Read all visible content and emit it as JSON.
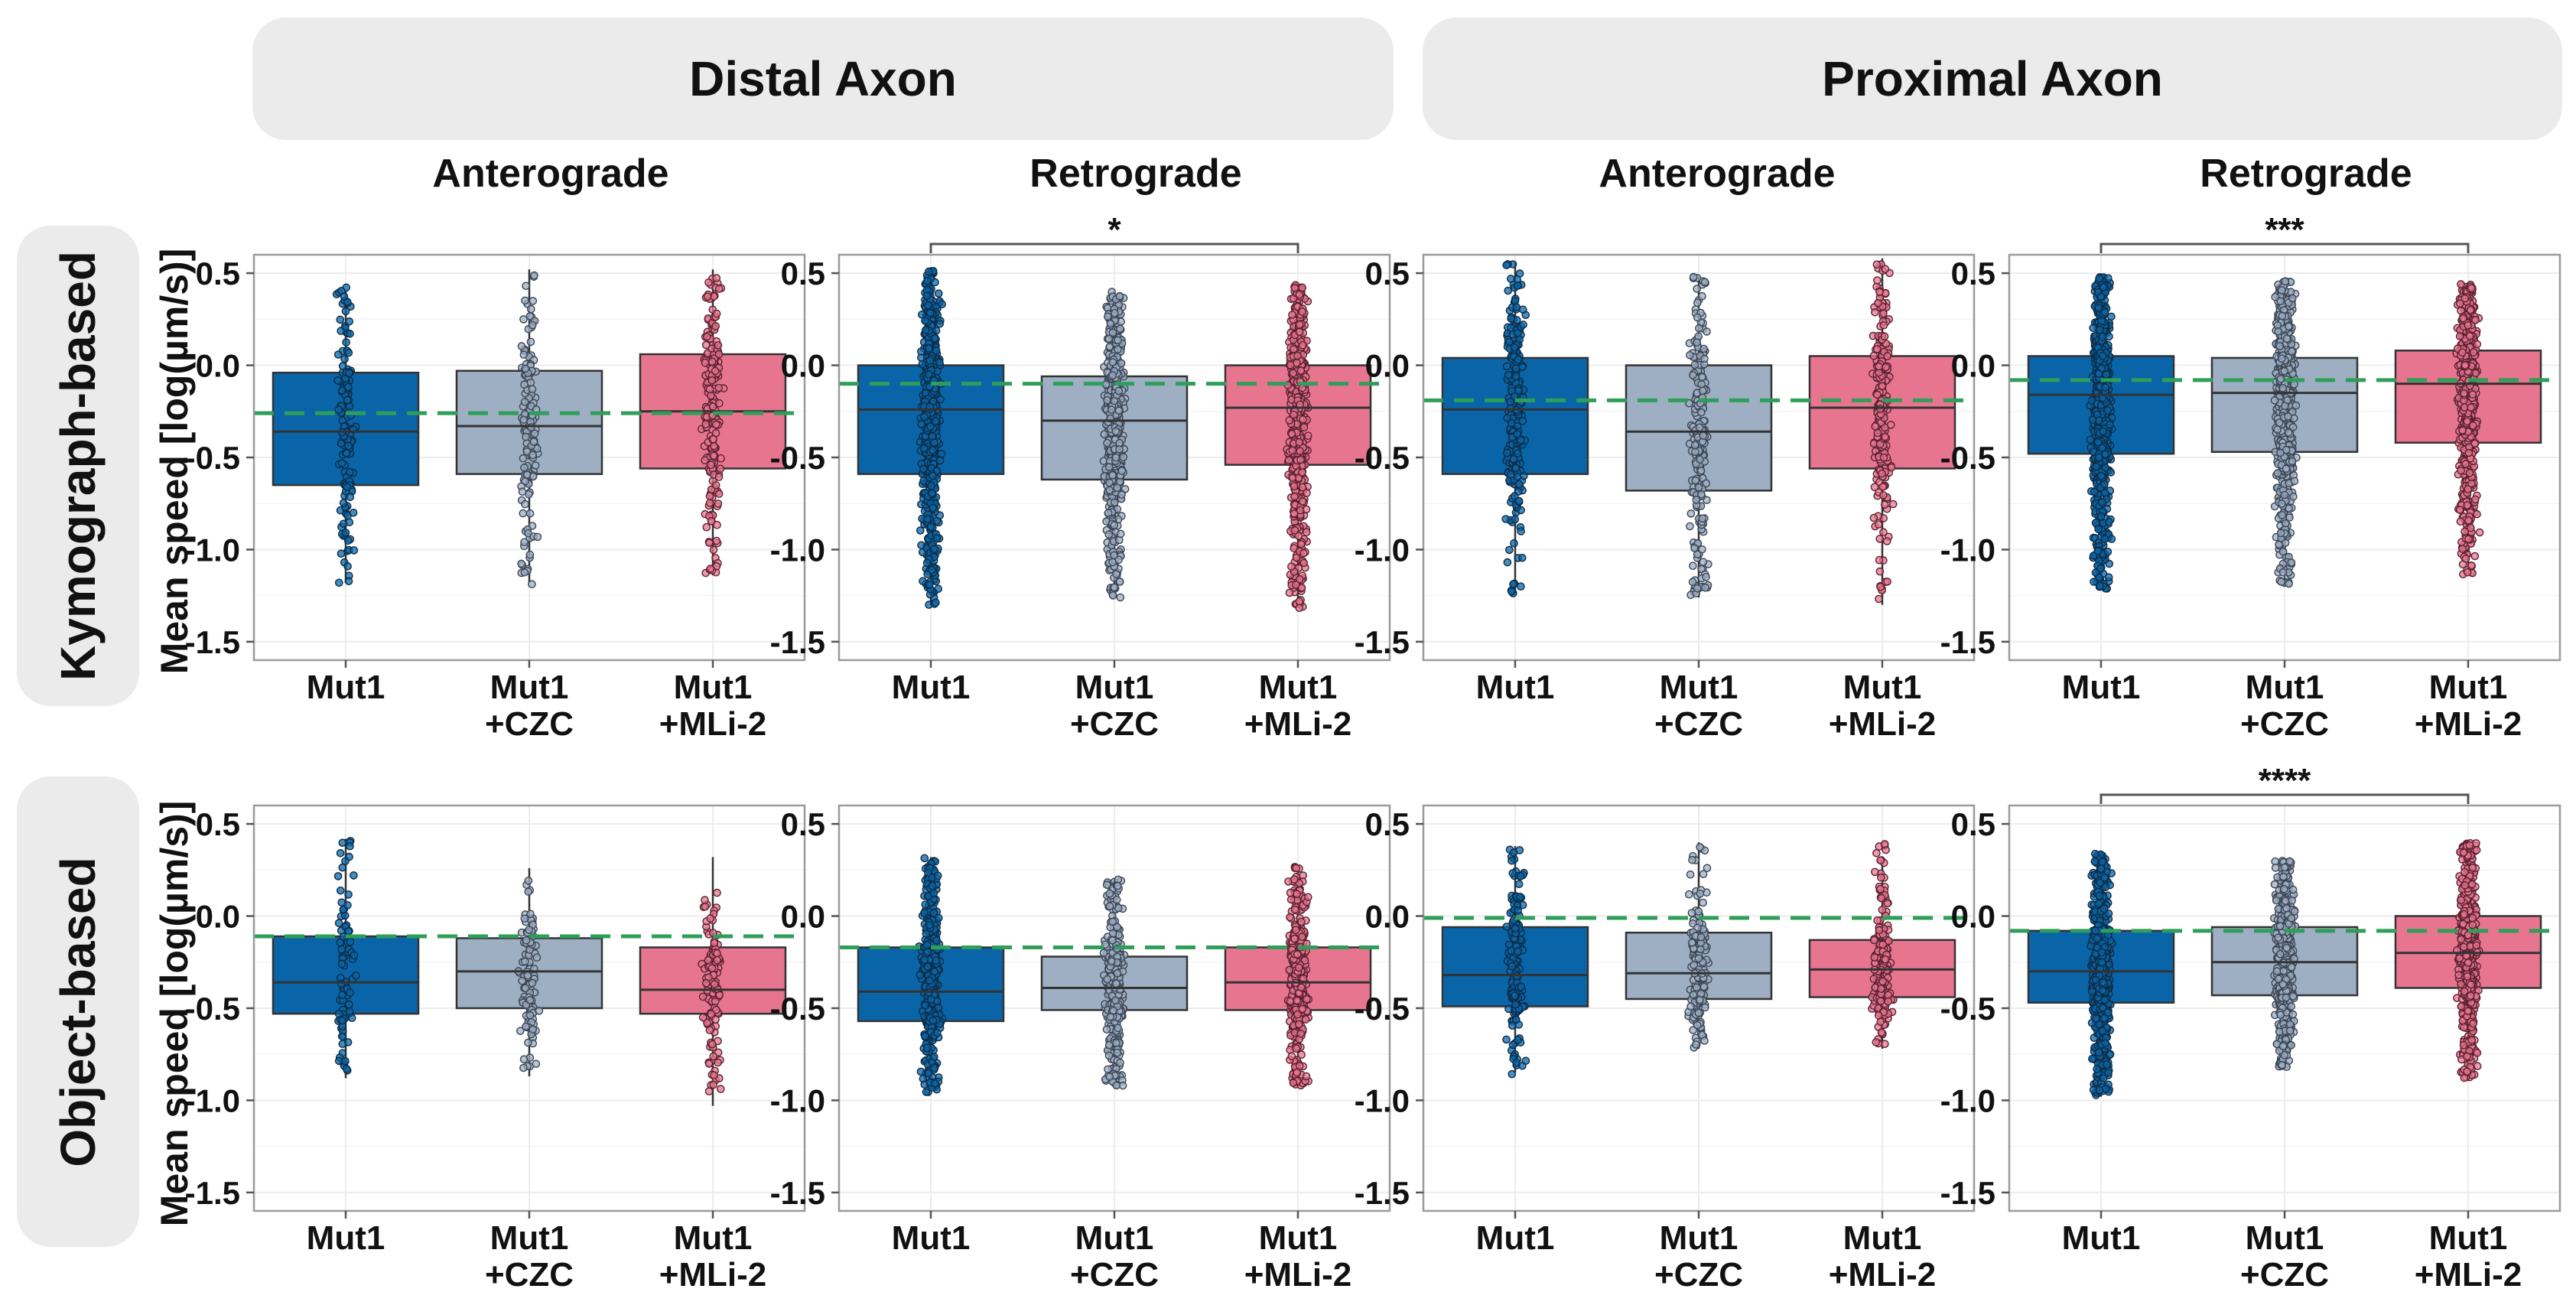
{
  "strips": {
    "distal": "Distal Axon",
    "proximal": "Proximal Axon",
    "kymograph": "Kymograph-based",
    "object": "Object-based"
  },
  "column_titles": [
    "Anterograde",
    "Retrograde",
    "Anterograde",
    "Retrograde"
  ],
  "y_axis_label": "Mean speed [log(µm/s)]",
  "colors": {
    "Mut1": "#0a65a8",
    "CZC": "#9eafc4",
    "MLi2": "#e8758f",
    "reference_line": "#2e9e58",
    "panel_border": "#9a9a9a",
    "grid": "#ececec"
  },
  "chart_data": [
    {
      "type": "box",
      "row": "Kymograph-based",
      "region": "Distal Axon",
      "direction": "Anterograde",
      "categories": [
        "Mut1\n+CZC",
        "Mut1\n+MLi-2"
      ],
      "ylim": [
        -1.6,
        0.6
      ],
      "yticks": [
        0.5,
        0.0,
        -0.5,
        -1.0,
        -1.5
      ],
      "ytick_labels": [
        "0.5",
        "0.0",
        "-0.5",
        "-1.0",
        "-1.5"
      ],
      "category_labels": [
        [
          "Mut1"
        ],
        [
          "Mut1",
          "+CZC"
        ],
        [
          "Mut1",
          "+MLi-2"
        ]
      ],
      "reference_line": -0.26,
      "significance": "",
      "boxes": [
        {
          "q1": -0.65,
          "median": -0.36,
          "q3": -0.04,
          "whisker_low": -1.18,
          "whisker_high": 0.4,
          "n": 140,
          "pt_min": -1.18,
          "pt_max": 0.44
        },
        {
          "q1": -0.59,
          "median": -0.33,
          "q3": -0.03,
          "whisker_low": -1.18,
          "whisker_high": 0.52,
          "n": 160,
          "pt_min": -1.2,
          "pt_max": 0.52
        },
        {
          "q1": -0.56,
          "median": -0.25,
          "q3": 0.06,
          "whisker_low": -1.14,
          "whisker_high": 0.52,
          "n": 200,
          "pt_min": -1.14,
          "pt_max": 0.54
        }
      ]
    },
    {
      "type": "box",
      "row": "Kymograph-based",
      "region": "Distal Axon",
      "direction": "Retrograde",
      "categories": [
        "Mut1\n+CZC",
        "Mut1\n+MLi-2"
      ],
      "ylim": [
        -1.6,
        0.6
      ],
      "yticks": [
        0.5,
        0.0,
        -0.5,
        -1.0,
        -1.5
      ],
      "ytick_labels": [
        "0.5",
        "0.0",
        "-0.5",
        "-1.0",
        "-1.5"
      ],
      "category_labels": [
        [
          "Mut1"
        ],
        [
          "Mut1",
          "+CZC"
        ],
        [
          "Mut1",
          "+MLi-2"
        ]
      ],
      "reference_line": -0.1,
      "significance": "*",
      "sig_pair": [
        0,
        2
      ],
      "boxes": [
        {
          "q1": -0.59,
          "median": -0.24,
          "q3": 0.0,
          "whisker_low": -1.3,
          "whisker_high": 0.52,
          "n": 650,
          "pt_min": -1.3,
          "pt_max": 0.52
        },
        {
          "q1": -0.62,
          "median": -0.3,
          "q3": -0.06,
          "whisker_low": -1.26,
          "whisker_high": 0.4,
          "n": 600,
          "pt_min": -1.26,
          "pt_max": 0.4
        },
        {
          "q1": -0.54,
          "median": -0.23,
          "q3": 0.0,
          "whisker_low": -1.3,
          "whisker_high": 0.42,
          "n": 650,
          "pt_min": -1.32,
          "pt_max": 0.44
        }
      ]
    },
    {
      "type": "box",
      "row": "Kymograph-based",
      "region": "Proximal Axon",
      "direction": "Anterograde",
      "categories": [
        "Mut1\n+CZC",
        "Mut1\n+MLi-2"
      ],
      "ylim": [
        -1.6,
        0.6
      ],
      "yticks": [
        0.5,
        0.0,
        -0.5,
        -1.0,
        -1.5
      ],
      "ytick_labels": [
        "0.5",
        "0.0",
        "-0.5",
        "-1.0",
        "-1.5"
      ],
      "category_labels": [
        [
          "Mut1"
        ],
        [
          "Mut1",
          "+CZC"
        ],
        [
          "Mut1",
          "+MLi-2"
        ]
      ],
      "reference_line": -0.19,
      "significance": "",
      "boxes": [
        {
          "q1": -0.59,
          "median": -0.24,
          "q3": 0.04,
          "whisker_low": -1.24,
          "whisker_high": 0.56,
          "n": 230,
          "pt_min": -1.24,
          "pt_max": 0.56
        },
        {
          "q1": -0.68,
          "median": -0.36,
          "q3": 0.0,
          "whisker_low": -1.26,
          "whisker_high": 0.48,
          "n": 230,
          "pt_min": -1.27,
          "pt_max": 0.48
        },
        {
          "q1": -0.56,
          "median": -0.23,
          "q3": 0.05,
          "whisker_low": -1.3,
          "whisker_high": 0.58,
          "n": 230,
          "pt_min": -1.3,
          "pt_max": 0.58
        }
      ]
    },
    {
      "type": "box",
      "row": "Kymograph-based",
      "region": "Proximal Axon",
      "direction": "Retrograde",
      "categories": [
        "Mut1\n+CZC",
        "Mut1\n+MLi-2"
      ],
      "ylim": [
        -1.6,
        0.6
      ],
      "yticks": [
        0.5,
        0.0,
        -0.5,
        -1.0,
        -1.5
      ],
      "ytick_labels": [
        "0.5",
        "0.0",
        "-0.5",
        "-1.0",
        "-1.5"
      ],
      "category_labels": [
        [
          "Mut1"
        ],
        [
          "Mut1",
          "+CZC"
        ],
        [
          "Mut1",
          "+MLi-2"
        ]
      ],
      "reference_line": -0.08,
      "significance": "***",
      "sig_pair": [
        0,
        2
      ],
      "boxes": [
        {
          "q1": -0.48,
          "median": -0.16,
          "q3": 0.05,
          "whisker_low": -1.22,
          "whisker_high": 0.48,
          "n": 900,
          "pt_min": -1.22,
          "pt_max": 0.48
        },
        {
          "q1": -0.47,
          "median": -0.15,
          "q3": 0.04,
          "whisker_low": -1.2,
          "whisker_high": 0.46,
          "n": 750,
          "pt_min": -1.2,
          "pt_max": 0.46
        },
        {
          "q1": -0.42,
          "median": -0.1,
          "q3": 0.08,
          "whisker_low": -1.12,
          "whisker_high": 0.44,
          "n": 750,
          "pt_min": -1.14,
          "pt_max": 0.44
        }
      ]
    },
    {
      "type": "box",
      "row": "Object-based",
      "region": "Distal Axon",
      "direction": "Anterograde",
      "categories": [
        "Mut1\n+CZC",
        "Mut1\n+MLi-2"
      ],
      "ylim": [
        -1.6,
        0.6
      ],
      "yticks": [
        0.5,
        0.0,
        -0.5,
        -1.0,
        -1.5
      ],
      "ytick_labels": [
        "0.5",
        "0.0",
        "-0.5",
        "-1.0",
        "-1.5"
      ],
      "category_labels": [
        [
          "Mut1"
        ],
        [
          "Mut1",
          "+CZC"
        ],
        [
          "Mut1",
          "+MLi-2"
        ]
      ],
      "reference_line": -0.11,
      "significance": "",
      "boxes": [
        {
          "q1": -0.53,
          "median": -0.36,
          "q3": -0.11,
          "whisker_low": -0.88,
          "whisker_high": 0.42,
          "n": 90,
          "pt_min": -0.88,
          "pt_max": 0.42
        },
        {
          "q1": -0.5,
          "median": -0.3,
          "q3": -0.12,
          "whisker_low": -0.87,
          "whisker_high": 0.26,
          "n": 110,
          "pt_min": -0.87,
          "pt_max": 0.26
        },
        {
          "q1": -0.53,
          "median": -0.4,
          "q3": -0.17,
          "whisker_low": -1.03,
          "whisker_high": 0.32,
          "n": 120,
          "pt_min": -1.03,
          "pt_max": 0.32
        }
      ]
    },
    {
      "type": "box",
      "row": "Object-based",
      "region": "Distal Axon",
      "direction": "Retrograde",
      "categories": [
        "Mut1\n+CZC",
        "Mut1\n+MLi-2"
      ],
      "ylim": [
        -1.6,
        0.6
      ],
      "yticks": [
        0.5,
        0.0,
        -0.5,
        -1.0,
        -1.5
      ],
      "ytick_labels": [
        "0.5",
        "0.0",
        "-0.5",
        "-1.0",
        "-1.5"
      ],
      "category_labels": [
        [
          "Mut1"
        ],
        [
          "Mut1",
          "+CZC"
        ],
        [
          "Mut1",
          "+MLi-2"
        ]
      ],
      "reference_line": -0.17,
      "significance": "",
      "boxes": [
        {
          "q1": -0.57,
          "median": -0.41,
          "q3": -0.17,
          "whisker_low": -0.95,
          "whisker_high": 0.32,
          "n": 450,
          "pt_min": -0.96,
          "pt_max": 0.32
        },
        {
          "q1": -0.51,
          "median": -0.39,
          "q3": -0.22,
          "whisker_low": -0.92,
          "whisker_high": 0.2,
          "n": 350,
          "pt_min": -0.92,
          "pt_max": 0.2
        },
        {
          "q1": -0.51,
          "median": -0.36,
          "q3": -0.17,
          "whisker_low": -0.92,
          "whisker_high": 0.25,
          "n": 450,
          "pt_min": -0.92,
          "pt_max": 0.27
        }
      ]
    },
    {
      "type": "box",
      "row": "Object-based",
      "region": "Proximal Axon",
      "direction": "Anterograde",
      "categories": [
        "Mut1\n+CZC",
        "Mut1\n+MLi-2"
      ],
      "ylim": [
        -1.6,
        0.6
      ],
      "yticks": [
        0.5,
        0.0,
        -0.5,
        -1.0,
        -1.5
      ],
      "ytick_labels": [
        "0.5",
        "0.0",
        "-0.5",
        "-1.0",
        "-1.5"
      ],
      "category_labels": [
        [
          "Mut1"
        ],
        [
          "Mut1",
          "+CZC"
        ],
        [
          "Mut1",
          "+MLi-2"
        ]
      ],
      "reference_line": -0.01,
      "significance": "",
      "boxes": [
        {
          "q1": -0.49,
          "median": -0.32,
          "q3": -0.06,
          "whisker_low": -0.85,
          "whisker_high": 0.38,
          "n": 170,
          "pt_min": -0.86,
          "pt_max": 0.38
        },
        {
          "q1": -0.45,
          "median": -0.31,
          "q3": -0.09,
          "whisker_low": -0.72,
          "whisker_high": 0.4,
          "n": 170,
          "pt_min": -0.72,
          "pt_max": 0.4
        },
        {
          "q1": -0.44,
          "median": -0.29,
          "q3": -0.13,
          "whisker_low": -0.72,
          "whisker_high": 0.32,
          "n": 190,
          "pt_min": -0.72,
          "pt_max": 0.4
        }
      ]
    },
    {
      "type": "box",
      "row": "Object-based",
      "region": "Proximal Axon",
      "direction": "Retrograde",
      "categories": [
        "Mut1\n+CZC",
        "Mut1\n+MLi-2"
      ],
      "ylim": [
        -1.6,
        0.6
      ],
      "yticks": [
        0.5,
        0.0,
        -0.5,
        -1.0,
        -1.5
      ],
      "ytick_labels": [
        "0.5",
        "0.0",
        "-0.5",
        "-1.0",
        "-1.5"
      ],
      "category_labels": [
        [
          "Mut1"
        ],
        [
          "Mut1",
          "+CZC"
        ],
        [
          "Mut1",
          "+MLi-2"
        ]
      ],
      "reference_line": -0.08,
      "significance": "****",
      "sig_pair": [
        0,
        2
      ],
      "boxes": [
        {
          "q1": -0.47,
          "median": -0.3,
          "q3": -0.08,
          "whisker_low": -0.98,
          "whisker_high": 0.33,
          "n": 750,
          "pt_min": -0.98,
          "pt_max": 0.34
        },
        {
          "q1": -0.43,
          "median": -0.25,
          "q3": -0.06,
          "whisker_low": -0.82,
          "whisker_high": 0.3,
          "n": 600,
          "pt_min": -0.82,
          "pt_max": 0.3
        },
        {
          "q1": -0.39,
          "median": -0.2,
          "q3": 0.0,
          "whisker_low": -0.88,
          "whisker_high": 0.38,
          "n": 650,
          "pt_min": -0.88,
          "pt_max": 0.4
        }
      ]
    }
  ]
}
